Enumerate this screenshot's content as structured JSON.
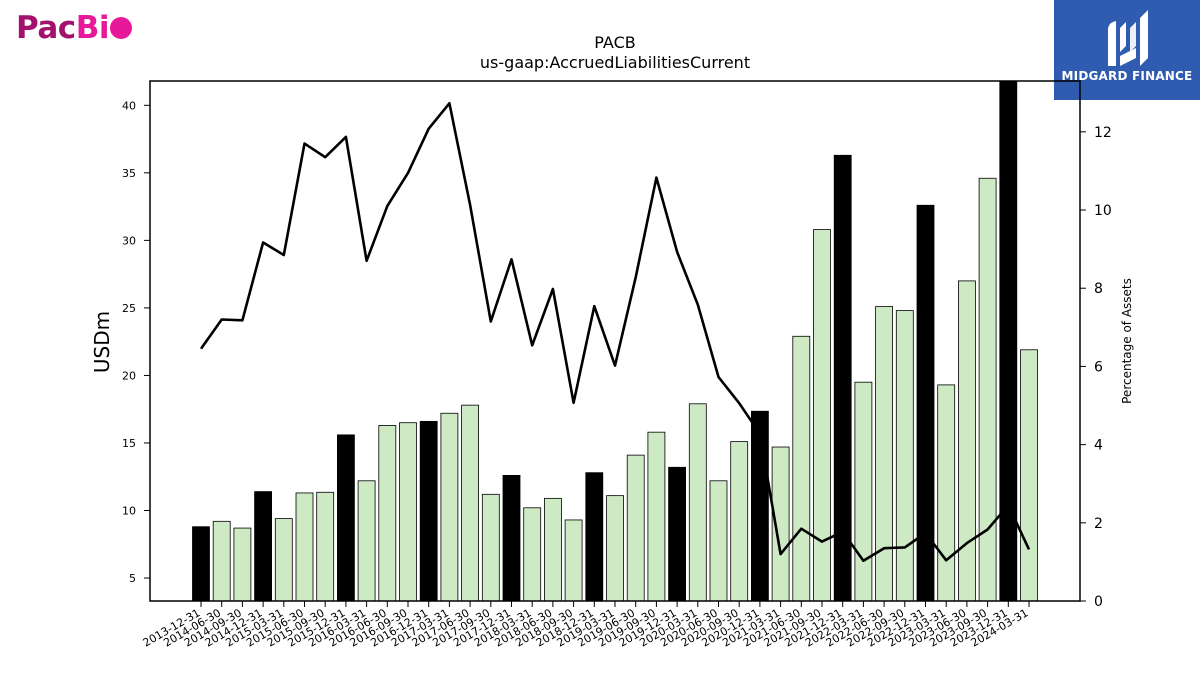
{
  "branding": {
    "company_logo_text": "PacBio",
    "publisher_name": "MIDGARD FINANCE"
  },
  "chart_data": {
    "type": "bar",
    "title": "PACB",
    "subtitle": "us-gaap:AccruedLiabilitiesCurrent",
    "ylabel": "USDm",
    "y2label": "Percentage of Assets",
    "ylim": [
      3.3,
      41.8
    ],
    "y2lim": [
      0,
      13.3
    ],
    "yticks": [
      5,
      10,
      15,
      20,
      25,
      30,
      35,
      40
    ],
    "y2ticks": [
      0,
      2,
      4,
      6,
      8,
      10,
      12
    ],
    "colors": {
      "year_end_bar": "#000000",
      "quarter_bar": "#cdeac5",
      "line": "#000000"
    },
    "categories": [
      "2013-12-31",
      "2014-06-30",
      "2014-09-30",
      "2014-12-31",
      "2015-03-31",
      "2015-06-30",
      "2015-09-30",
      "2015-12-31",
      "2016-03-31",
      "2016-06-30",
      "2016-09-30",
      "2016-12-31",
      "2017-03-31",
      "2017-06-30",
      "2017-09-30",
      "2017-12-31",
      "2018-03-31",
      "2018-06-30",
      "2018-09-30",
      "2018-12-31",
      "2019-03-31",
      "2019-06-30",
      "2019-09-30",
      "2019-12-31",
      "2020-03-31",
      "2020-06-30",
      "2020-09-30",
      "2020-12-31",
      "2021-03-31",
      "2021-06-30",
      "2021-09-30",
      "2021-12-31",
      "2022-03-31",
      "2022-06-30",
      "2022-09-30",
      "2022-12-31",
      "2023-03-31",
      "2023-06-30",
      "2023-09-30",
      "2023-12-31",
      "2024-03-31"
    ],
    "series": [
      {
        "values": [
          8.8,
          9.2,
          8.7,
          11.4,
          9.4,
          11.3,
          11.35,
          15.6,
          12.2,
          16.3,
          16.5,
          16.6,
          17.2,
          17.8,
          11.2,
          12.6,
          10.2,
          10.9,
          9.3,
          12.8,
          11.1,
          14.1,
          15.8,
          13.2,
          17.9,
          12.2,
          15.1,
          17.35,
          14.7,
          22.9,
          30.8,
          36.3,
          19.5,
          25.1,
          24.8,
          32.6,
          19.3,
          27.0,
          34.6,
          41.9,
          21.9
        ],
        "year_end": [
          true,
          false,
          false,
          true,
          false,
          false,
          false,
          true,
          false,
          false,
          false,
          true,
          false,
          false,
          false,
          true,
          false,
          false,
          false,
          true,
          false,
          false,
          false,
          true,
          false,
          false,
          false,
          true,
          false,
          false,
          false,
          true,
          false,
          false,
          false,
          true,
          false,
          false,
          false,
          true,
          false
        ]
      },
      {
        "axis": "right",
        "values": [
          6.45,
          7.2,
          7.18,
          9.17,
          8.85,
          11.7,
          11.35,
          11.87,
          8.7,
          10.1,
          10.95,
          12.08,
          12.73,
          10.13,
          7.15,
          8.74,
          6.54,
          7.98,
          5.07,
          7.54,
          6.02,
          8.28,
          10.83,
          8.93,
          7.58,
          5.73,
          5.06,
          4.28,
          1.2,
          1.85,
          1.52,
          1.77,
          1.03,
          1.35,
          1.37,
          1.74,
          1.04,
          1.48,
          1.83,
          2.45,
          1.32
        ]
      }
    ]
  }
}
